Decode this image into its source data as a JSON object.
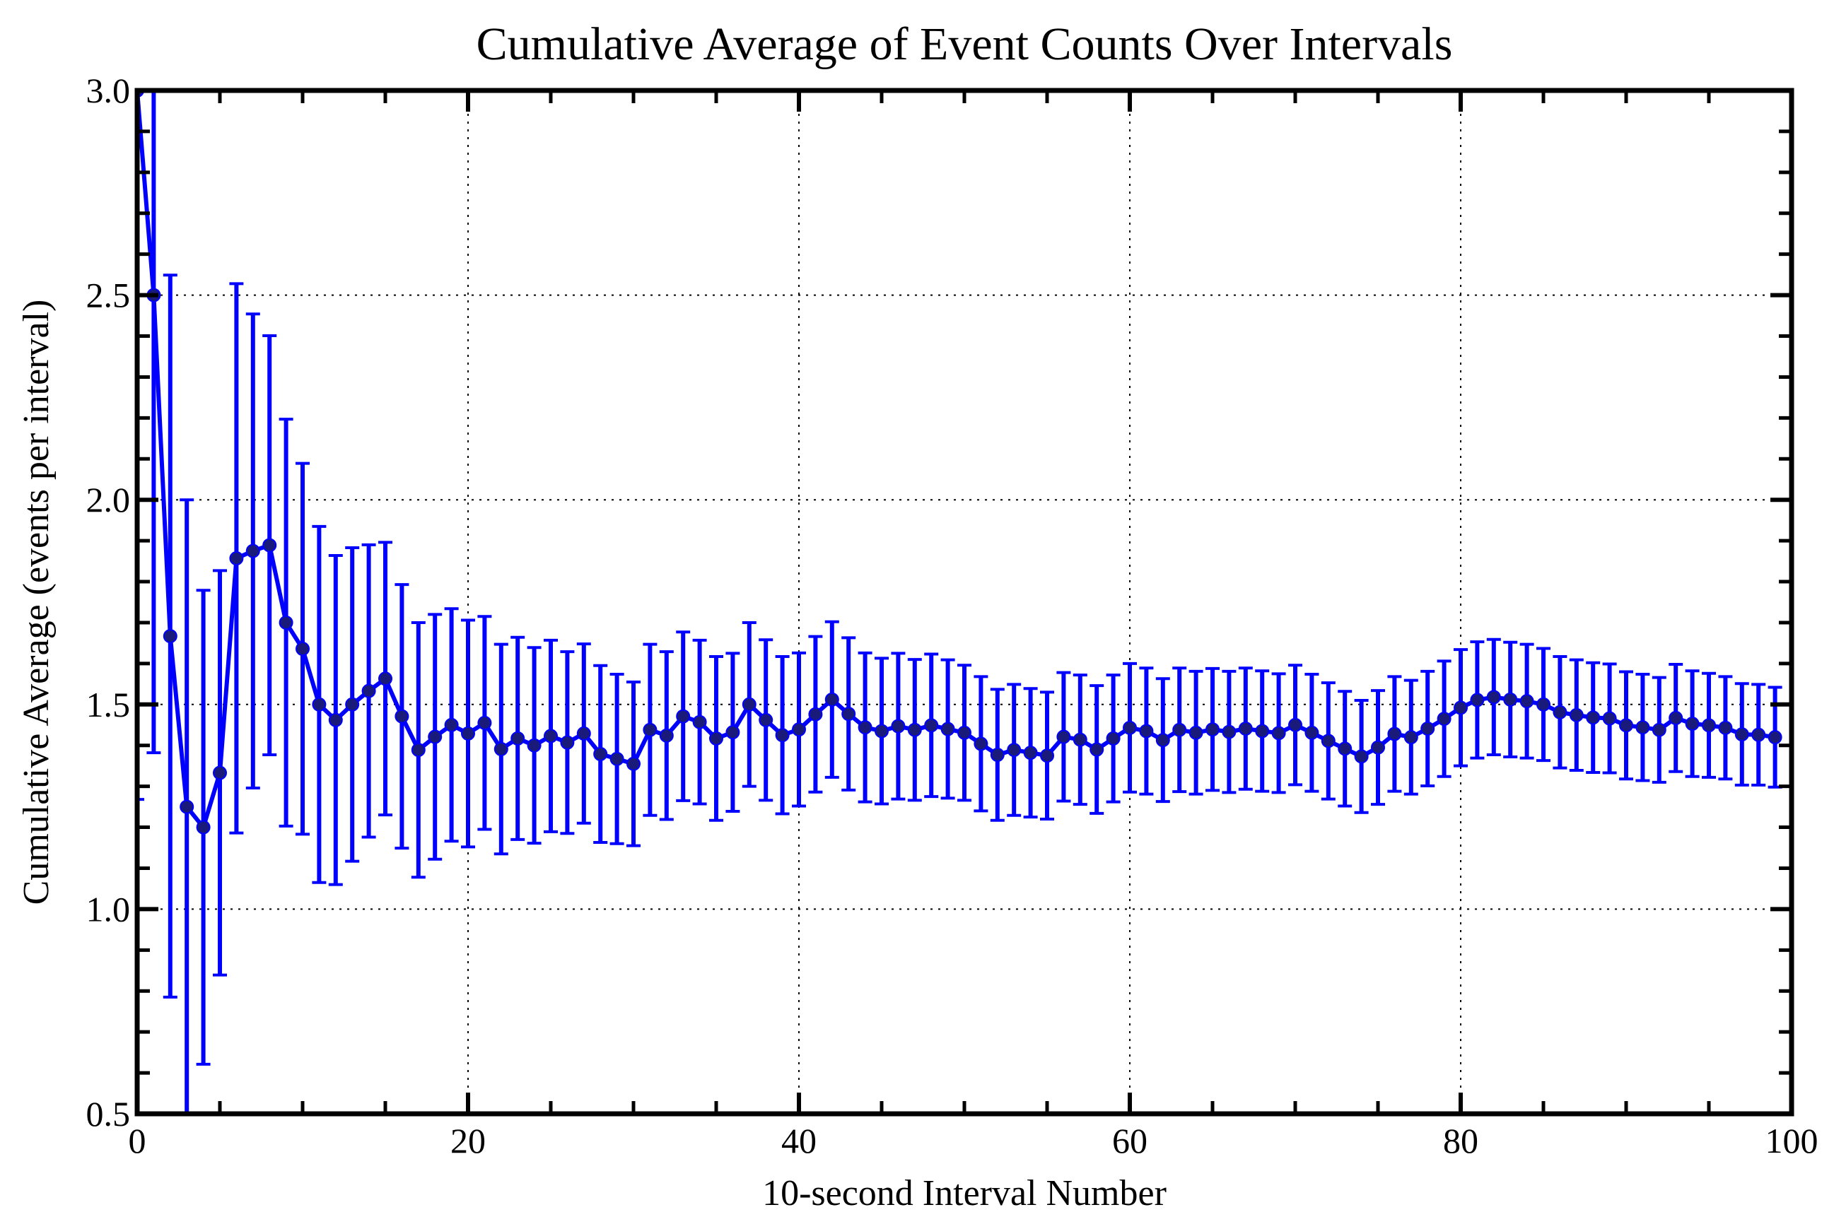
{
  "chart_data": {
    "type": "line",
    "title": "Cumulative Average of Event Counts Over Intervals",
    "xlabel": "10-second Interval Number",
    "ylabel": "Cumulative Average (events per interval)",
    "xlim": [
      0,
      100
    ],
    "ylim": [
      0.5,
      3.0
    ],
    "xticks": [
      "0",
      "20",
      "40",
      "60",
      "80",
      "100"
    ],
    "yticks": [
      "0.5",
      "1.0",
      "1.5",
      "2.0",
      "2.5",
      "3.0"
    ],
    "grid": true,
    "colors": {
      "series": "#0000ff",
      "marker_fill": "#1a1a7a",
      "axes": "#000000"
    },
    "series": [
      {
        "x": [
          0,
          1,
          2,
          3,
          4,
          5,
          6,
          7,
          8,
          9,
          10,
          11,
          12,
          13,
          14,
          15,
          16,
          17,
          18,
          19,
          20,
          21,
          22,
          23,
          24,
          25,
          26,
          27,
          28,
          29,
          30,
          31,
          32,
          33,
          34,
          35,
          36,
          37,
          38,
          39,
          40,
          41,
          42,
          43,
          44,
          45,
          46,
          47,
          48,
          49,
          50,
          51,
          52,
          53,
          54,
          55,
          56,
          57,
          58,
          59,
          60,
          61,
          62,
          63,
          64,
          65,
          66,
          67,
          68,
          69,
          70,
          71,
          72,
          73,
          74,
          75,
          76,
          77,
          78,
          79,
          80,
          81,
          82,
          83,
          84,
          85,
          86,
          87,
          88,
          89,
          90,
          91,
          92,
          93,
          94,
          95,
          96,
          97,
          98,
          99
        ],
        "y": [
          3.0,
          2.5,
          1.667,
          1.25,
          1.2,
          1.333,
          1.857,
          1.875,
          1.889,
          1.7,
          1.636,
          1.5,
          1.462,
          1.5,
          1.533,
          1.563,
          1.471,
          1.389,
          1.421,
          1.45,
          1.429,
          1.455,
          1.391,
          1.417,
          1.4,
          1.423,
          1.407,
          1.429,
          1.379,
          1.367,
          1.355,
          1.438,
          1.424,
          1.471,
          1.457,
          1.417,
          1.432,
          1.5,
          1.462,
          1.425,
          1.439,
          1.476,
          1.512,
          1.477,
          1.444,
          1.435,
          1.447,
          1.438,
          1.449,
          1.44,
          1.431,
          1.404,
          1.377,
          1.389,
          1.382,
          1.375,
          1.421,
          1.414,
          1.39,
          1.417,
          1.443,
          1.435,
          1.413,
          1.438,
          1.431,
          1.439,
          1.433,
          1.441,
          1.435,
          1.43,
          1.45,
          1.431,
          1.411,
          1.392,
          1.373,
          1.395,
          1.428,
          1.42,
          1.441,
          1.465,
          1.492,
          1.511,
          1.518,
          1.512,
          1.508,
          1.5,
          1.481,
          1.474,
          1.468,
          1.466,
          1.449,
          1.444,
          1.438,
          1.467,
          1.453,
          1.449,
          1.443,
          1.427,
          1.426,
          1.42
        ],
        "yerr": [
          1.732,
          1.118,
          0.882,
          0.75,
          0.579,
          0.494,
          0.671,
          0.579,
          0.512,
          0.497,
          0.453,
          0.435,
          0.402,
          0.383,
          0.357,
          0.333,
          0.322,
          0.311,
          0.299,
          0.284,
          0.277,
          0.26,
          0.256,
          0.247,
          0.239,
          0.234,
          0.222,
          0.219,
          0.216,
          0.207,
          0.2,
          0.209,
          0.205,
          0.206,
          0.2,
          0.2,
          0.193,
          0.2,
          0.196,
          0.192,
          0.187,
          0.19,
          0.19,
          0.186,
          0.182,
          0.178,
          0.178,
          0.172,
          0.174,
          0.169,
          0.165,
          0.164,
          0.16,
          0.16,
          0.157,
          0.155,
          0.157,
          0.158,
          0.156,
          0.155,
          0.157,
          0.154,
          0.15,
          0.151,
          0.15,
          0.149,
          0.148,
          0.148,
          0.147,
          0.145,
          0.146,
          0.143,
          0.142,
          0.14,
          0.137,
          0.139,
          0.14,
          0.139,
          0.14,
          0.141,
          0.142,
          0.142,
          0.141,
          0.14,
          0.139,
          0.137,
          0.136,
          0.135,
          0.134,
          0.133,
          0.131,
          0.13,
          0.128,
          0.131,
          0.129,
          0.127,
          0.125,
          0.124,
          0.123,
          0.122
        ]
      }
    ]
  }
}
